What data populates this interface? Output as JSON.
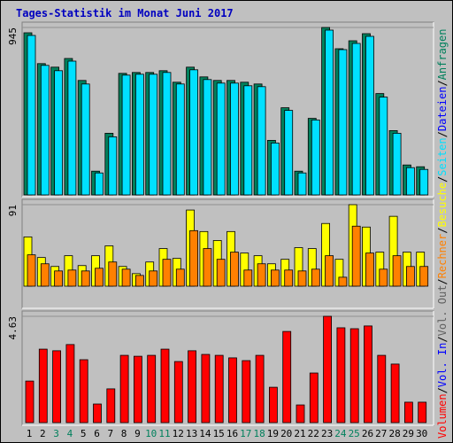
{
  "chart_data": {
    "type": "bar",
    "title": "Tages-Statistik im Monat Juni 2017",
    "categories": [
      "1",
      "2",
      "3",
      "4",
      "5",
      "6",
      "7",
      "8",
      "9",
      "10",
      "11",
      "12",
      "13",
      "14",
      "15",
      "16",
      "17",
      "18",
      "19",
      "20",
      "21",
      "22",
      "23",
      "24",
      "25",
      "26",
      "27",
      "28",
      "29",
      "30"
    ],
    "weekend_indices": [
      2,
      3,
      9,
      10,
      16,
      17,
      23,
      24
    ],
    "weekend_color": "#00805c",
    "separator": "/",
    "legend": [
      {
        "label": "Volumen",
        "color": "#ff0000"
      },
      {
        "label": "Vol. In",
        "color": "#0000ff"
      },
      {
        "label": "Vol. Out",
        "color": "#606060"
      },
      {
        "label": "Rechner",
        "color": "#ff8000"
      },
      {
        "label": "Besuche",
        "color": "#ffff00"
      },
      {
        "label": "Seiten",
        "color": "#00e0ff"
      },
      {
        "label": "Dateien",
        "color": "#0000ff"
      },
      {
        "label": "Anfragen",
        "color": "#00805c"
      }
    ],
    "panels": [
      {
        "ylim": [
          0,
          945
        ],
        "yticks": [
          945
        ],
        "series": [
          {
            "color": "#00805c",
            "values": [
              915,
              741,
              721,
              770,
              646,
              134,
              348,
              686,
              691,
              691,
              701,
              636,
              721,
              666,
              646,
              646,
              636,
              626,
              308,
              492,
              134,
              432,
              945,
              825,
              870,
              910,
              572,
              363,
              169,
              159
            ]
          },
          {
            "color": "#00e0ff",
            "values": [
              900,
              731,
              701,
              755,
              626,
              124,
              328,
              676,
              681,
              681,
              691,
              626,
              706,
              651,
              631,
              631,
              616,
              611,
              293,
              477,
              124,
              423,
              930,
              820,
              855,
              895,
              552,
              348,
              154,
              144
            ]
          }
        ]
      },
      {
        "ylim": [
          0,
          91
        ],
        "yticks": [
          91
        ],
        "series": [
          {
            "color": "#ffff00",
            "values": [
              55,
              32,
              22,
              34,
              23,
              34,
              45,
              22,
              14,
              27,
              42,
              31,
              85,
              61,
              51,
              61,
              37,
              34,
              25,
              30,
              43,
              42,
              70,
              30,
              91,
              66,
              38,
              78,
              38,
              38
            ]
          },
          {
            "color": "#ff8000",
            "values": [
              35,
              25,
              17,
              18,
              17,
              20,
              27,
              19,
              12,
              17,
              30,
              19,
              62,
              42,
              30,
              38,
              18,
              25,
              18,
              18,
              17,
              19,
              34,
              10,
              67,
              37,
              19,
              34,
              22,
              22
            ]
          }
        ]
      },
      {
        "ylim": [
          0,
          4.63
        ],
        "yticks": [
          4.63
        ],
        "series": [
          {
            "color": "#ff0000",
            "values": [
              1.81,
              3.2,
              3.13,
              3.4,
              2.74,
              0.81,
              1.47,
              2.93,
              2.89,
              2.93,
              3.2,
              2.66,
              3.13,
              2.97,
              2.93,
              2.82,
              2.7,
              2.93,
              1.54,
              3.97,
              0.77,
              2.16,
              4.63,
              4.13,
              4.09,
              4.21,
              2.93,
              2.55,
              0.89,
              0.89
            ]
          }
        ]
      }
    ]
  }
}
